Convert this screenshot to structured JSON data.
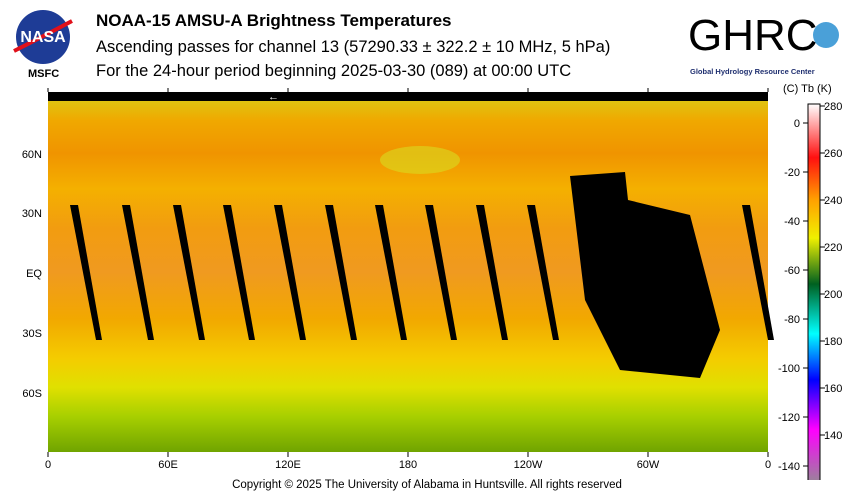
{
  "header": {
    "title": "NOAA-15 AMSU-A Brightness Temperatures",
    "subtitle1": "Ascending passes for channel 13 (57290.33 ± 322.2 ± 10 MHz, 5 hPa)",
    "subtitle2": "For the 24-hour period beginning 2025-03-30 (089) at 00:00 UTC"
  },
  "logos": {
    "nasa": "NASA",
    "msfc": "MSFC",
    "ghrc": "GHRC",
    "ghrc_sub": "Global Hydrology Resource Center"
  },
  "map": {
    "lat_labels": [
      "60N",
      "30N",
      "EQ",
      "30S",
      "60S"
    ],
    "lon_labels": [
      "0",
      "60E",
      "120E",
      "180",
      "120W",
      "60W",
      "0"
    ],
    "direction_arrow": "←"
  },
  "colorbar": {
    "header": "(C)  Tb  (K)",
    "kelvin_ticks": [
      "280",
      "260",
      "240",
      "220",
      "200",
      "180",
      "160",
      "140"
    ],
    "celsius_ticks": [
      "0",
      "-20",
      "-40",
      "-60",
      "-80",
      "-100",
      "-120",
      "-140"
    ],
    "colors": [
      "#ffffff",
      "#ff1010",
      "#ffa000",
      "#f0f000",
      "#006020",
      "#00ffff",
      "#0000ff",
      "#ff00ff",
      "#909090"
    ]
  },
  "footer": "Copyright © 2025 The University of Alabama in Huntsville.  All rights reserved"
}
